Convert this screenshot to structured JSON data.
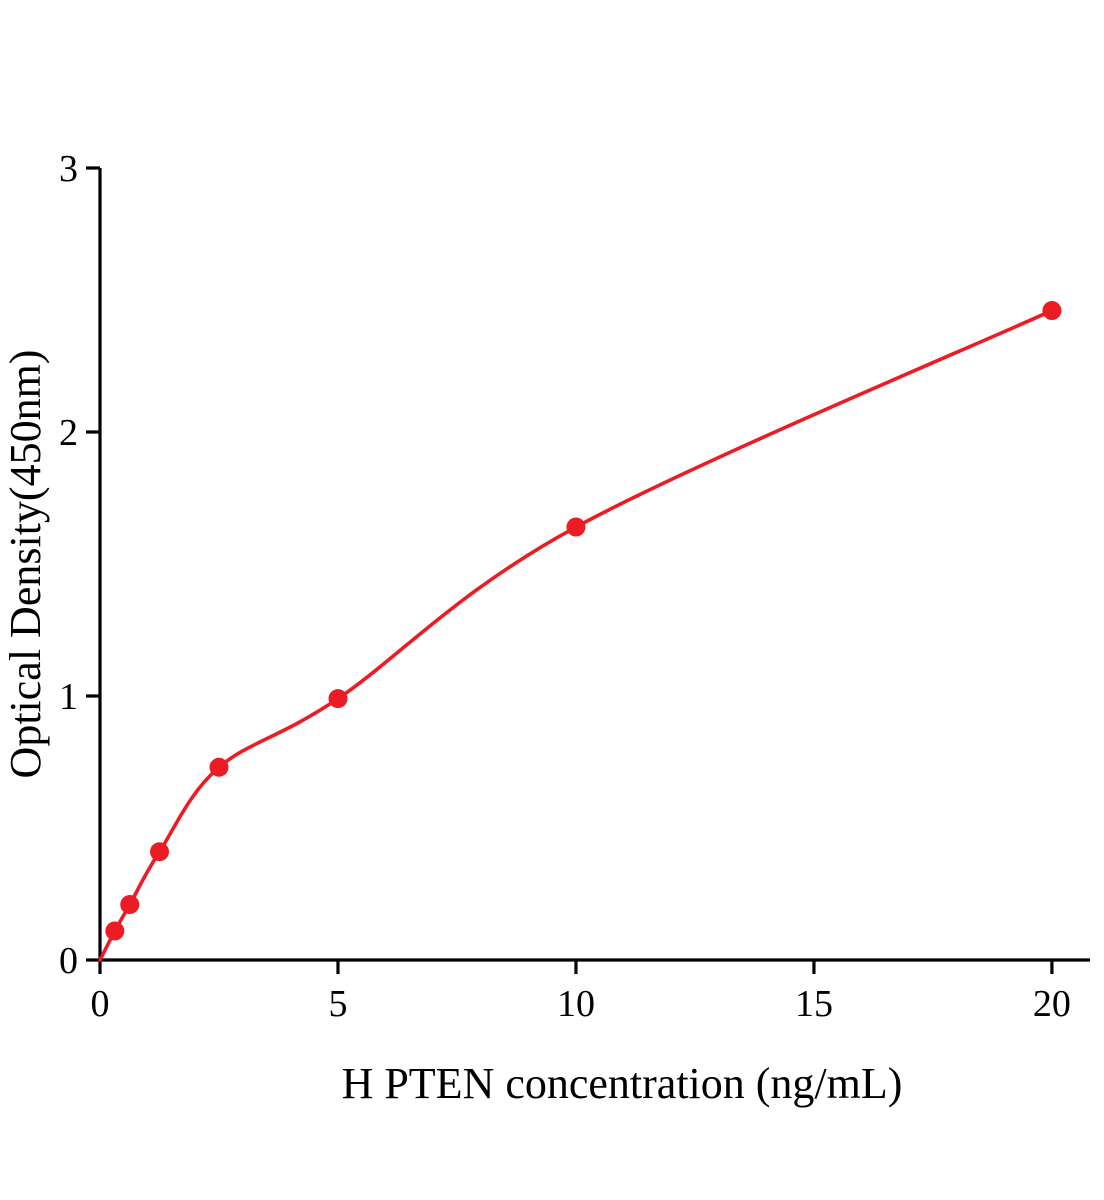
{
  "chart": {
    "title": "",
    "xlabel": "H PTEN concentration (ng/mL)",
    "ylabel": "Optical Density(450nm)"
  },
  "chart_data": {
    "type": "scatter",
    "title": "",
    "xlabel": "H PTEN concentration (ng/mL)",
    "ylabel": "Optical Density(450nm)",
    "x": [
      0.312,
      0.625,
      1.25,
      2.5,
      5,
      10,
      20
    ],
    "y": [
      0.11,
      0.21,
      0.41,
      0.73,
      0.99,
      1.64,
      2.46
    ],
    "curve_start": [
      0,
      0
    ],
    "fitted_curve": true,
    "xticks": [
      0,
      5,
      10,
      15,
      20
    ],
    "yticks": [
      0,
      1,
      2,
      3
    ],
    "xlim": [
      0,
      20.8
    ],
    "ylim": [
      0,
      3
    ],
    "grid": false,
    "legend": null,
    "point_color": "#EC1C24",
    "line_color": "#EC1C24",
    "axis_color": "#000000"
  }
}
